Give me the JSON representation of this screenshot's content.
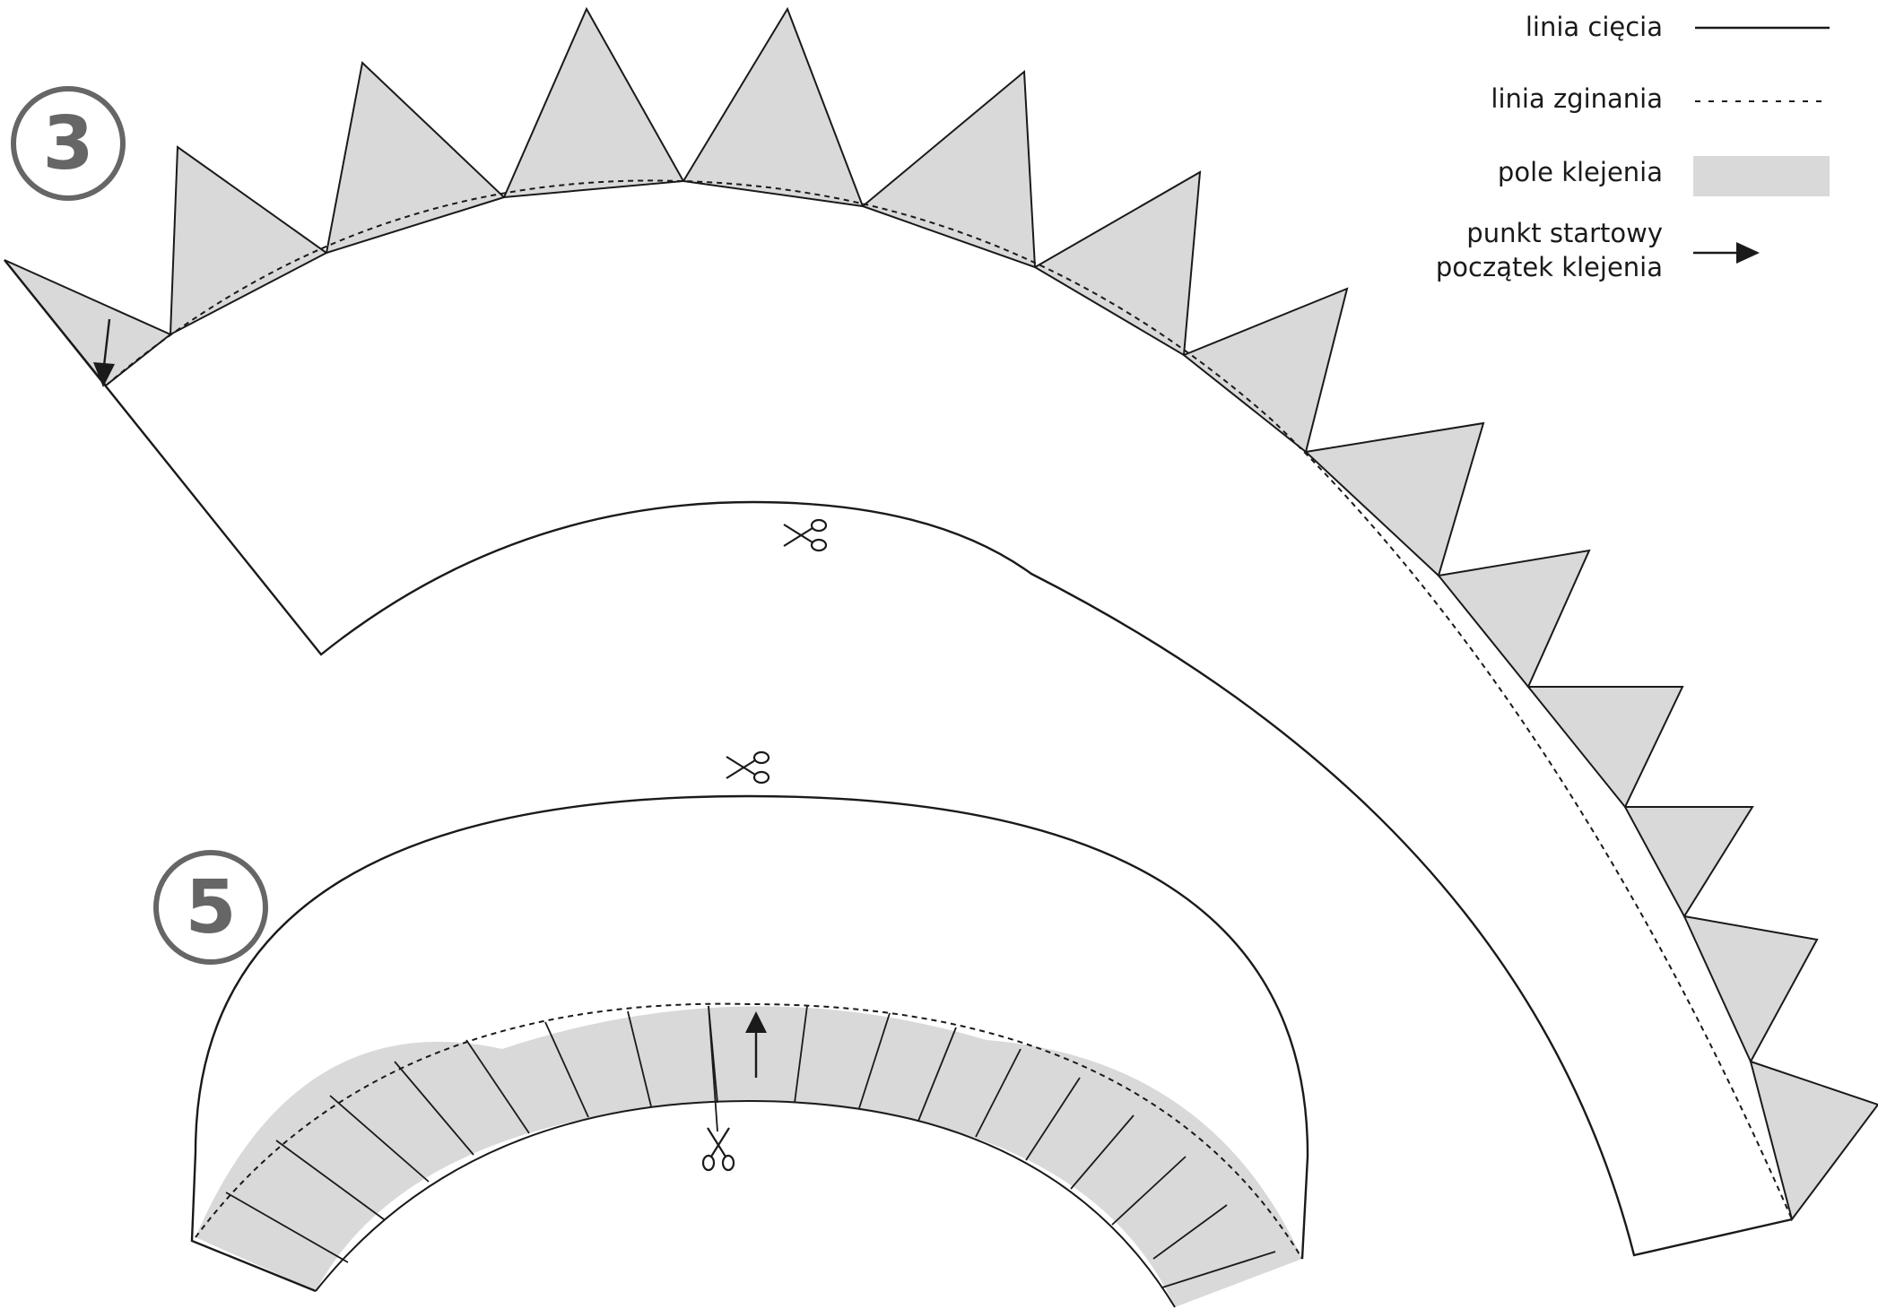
{
  "legend": {
    "cut_line": "linia cięcia",
    "fold_line": "linia zginania",
    "glue_area": "pole klejenia",
    "start_point_line1": "punkt startowy",
    "start_point_line2": "początek klejenia"
  },
  "pieces": [
    {
      "id": "piece-3",
      "number": "3"
    },
    {
      "id": "piece-5",
      "number": "5"
    }
  ],
  "colors": {
    "glue_fill": "#d9d9d9",
    "line": "#1a1a1a",
    "badge": "#666666"
  },
  "icons": {
    "scissors": "scissors-icon",
    "arrow": "start-arrow-icon"
  }
}
